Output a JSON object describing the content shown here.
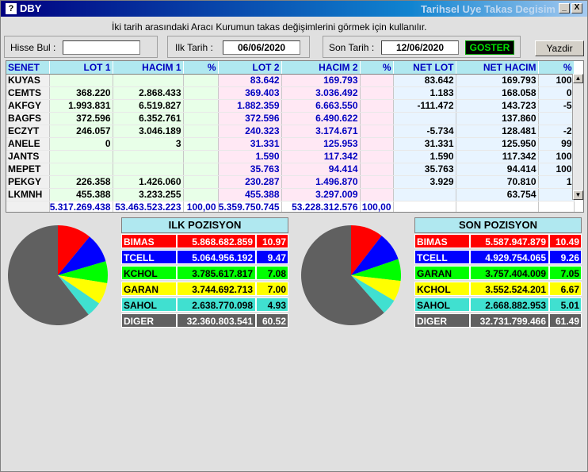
{
  "window": {
    "icon": "?",
    "title": "DBY",
    "subtitle": "Tarihsel Uye Takas Degisim",
    "minimize": "_",
    "close": "X"
  },
  "hint": "İki tarih arasındaki  Aracı Kurumun takas değişimlerini görmek için kullanılır.",
  "filters": {
    "hisse_label": "Hisse Bul :",
    "hisse_value": "",
    "ilk_label": "Ilk Tarih :",
    "ilk_value": "06/06/2020",
    "son_label": "Son Tarih :",
    "son_value": "12/06/2020",
    "goster": "GOSTER",
    "yazdir": "Yazdir"
  },
  "grid": {
    "headers": [
      "SENET",
      "LOT 1",
      "HACIM 1",
      "%",
      "LOT 2",
      "HACIM 2",
      "%",
      "NET LOT",
      "NET HACIM",
      "%"
    ],
    "rows": [
      [
        "KUYAS",
        "",
        "",
        "",
        "83.642",
        "169.793",
        "",
        "83.642",
        "169.793",
        "100"
      ],
      [
        "CEMTS",
        "368.220",
        "2.868.433",
        "",
        "369.403",
        "3.036.492",
        "",
        "1.183",
        "168.058",
        "0"
      ],
      [
        "AKFGY",
        "1.993.831",
        "6.519.827",
        "",
        "1.882.359",
        "6.663.550",
        "",
        "-111.472",
        "143.723",
        "-5"
      ],
      [
        "BAGFS",
        "372.596",
        "6.352.761",
        "",
        "372.596",
        "6.490.622",
        "",
        "",
        "137.860",
        ""
      ],
      [
        "ECZYT",
        "246.057",
        "3.046.189",
        "",
        "240.323",
        "3.174.671",
        "",
        "-5.734",
        "128.481",
        "-2"
      ],
      [
        "ANELE",
        "0",
        "3",
        "",
        "31.331",
        "125.953",
        "",
        "31.331",
        "125.950",
        "99"
      ],
      [
        "JANTS",
        "",
        "",
        "",
        "1.590",
        "117.342",
        "",
        "1.590",
        "117.342",
        "100"
      ],
      [
        "MEPET",
        "",
        "",
        "",
        "35.763",
        "94.414",
        "",
        "35.763",
        "94.414",
        "100"
      ],
      [
        "PEKGY",
        "226.358",
        "1.426.060",
        "",
        "230.287",
        "1.496.870",
        "",
        "3.929",
        "70.810",
        "1"
      ],
      [
        "LKMNH",
        "455.388",
        "3.233.255",
        "",
        "455.388",
        "3.297.009",
        "",
        "",
        "63.754",
        ""
      ]
    ],
    "totals": [
      "",
      "5.317.269.438",
      "53.463.523.223",
      "100,00",
      "5.359.750.745",
      "53.228.312.576",
      "100,00",
      "",
      "",
      ""
    ]
  },
  "ilk_pozisyon": {
    "title": "ILK POZISYON",
    "rows": [
      {
        "name": "BIMAS",
        "value": "5.868.682.859",
        "pct": "10.97",
        "pct_num": 10.97,
        "bg": "#ff0000",
        "fg": "#ffffff"
      },
      {
        "name": "TCELL",
        "value": "5.064.956.192",
        "pct": "9.47",
        "pct_num": 9.47,
        "bg": "#0000ff",
        "fg": "#ffffff"
      },
      {
        "name": "KCHOL",
        "value": "3.785.617.817",
        "pct": "7.08",
        "pct_num": 7.08,
        "bg": "#00ff00",
        "fg": "#000000"
      },
      {
        "name": "GARAN",
        "value": "3.744.692.713",
        "pct": "7.00",
        "pct_num": 7.0,
        "bg": "#ffff00",
        "fg": "#000000"
      },
      {
        "name": "SAHOL",
        "value": "2.638.770.098",
        "pct": "4.93",
        "pct_num": 4.93,
        "bg": "#40e0d0",
        "fg": "#000000"
      },
      {
        "name": "DIGER",
        "value": "32.360.803.541",
        "pct": "60.52",
        "pct_num": 60.52,
        "bg": "#606060",
        "fg": "#ffffff"
      }
    ]
  },
  "son_pozisyon": {
    "title": "SON POZISYON",
    "rows": [
      {
        "name": "BIMAS",
        "value": "5.587.947.879",
        "pct": "10.49",
        "pct_num": 10.49,
        "bg": "#ff0000",
        "fg": "#ffffff"
      },
      {
        "name": "TCELL",
        "value": "4.929.754.065",
        "pct": "9.26",
        "pct_num": 9.26,
        "bg": "#0000ff",
        "fg": "#ffffff"
      },
      {
        "name": "GARAN",
        "value": "3.757.404.009",
        "pct": "7.05",
        "pct_num": 7.05,
        "bg": "#00ff00",
        "fg": "#000000"
      },
      {
        "name": "KCHOL",
        "value": "3.552.524.201",
        "pct": "6.67",
        "pct_num": 6.67,
        "bg": "#ffff00",
        "fg": "#000000"
      },
      {
        "name": "SAHOL",
        "value": "2.668.882.953",
        "pct": "5.01",
        "pct_num": 5.01,
        "bg": "#40e0d0",
        "fg": "#000000"
      },
      {
        "name": "DIGER",
        "value": "32.731.799.466",
        "pct": "61.49",
        "pct_num": 61.49,
        "bg": "#606060",
        "fg": "#ffffff"
      }
    ]
  }
}
